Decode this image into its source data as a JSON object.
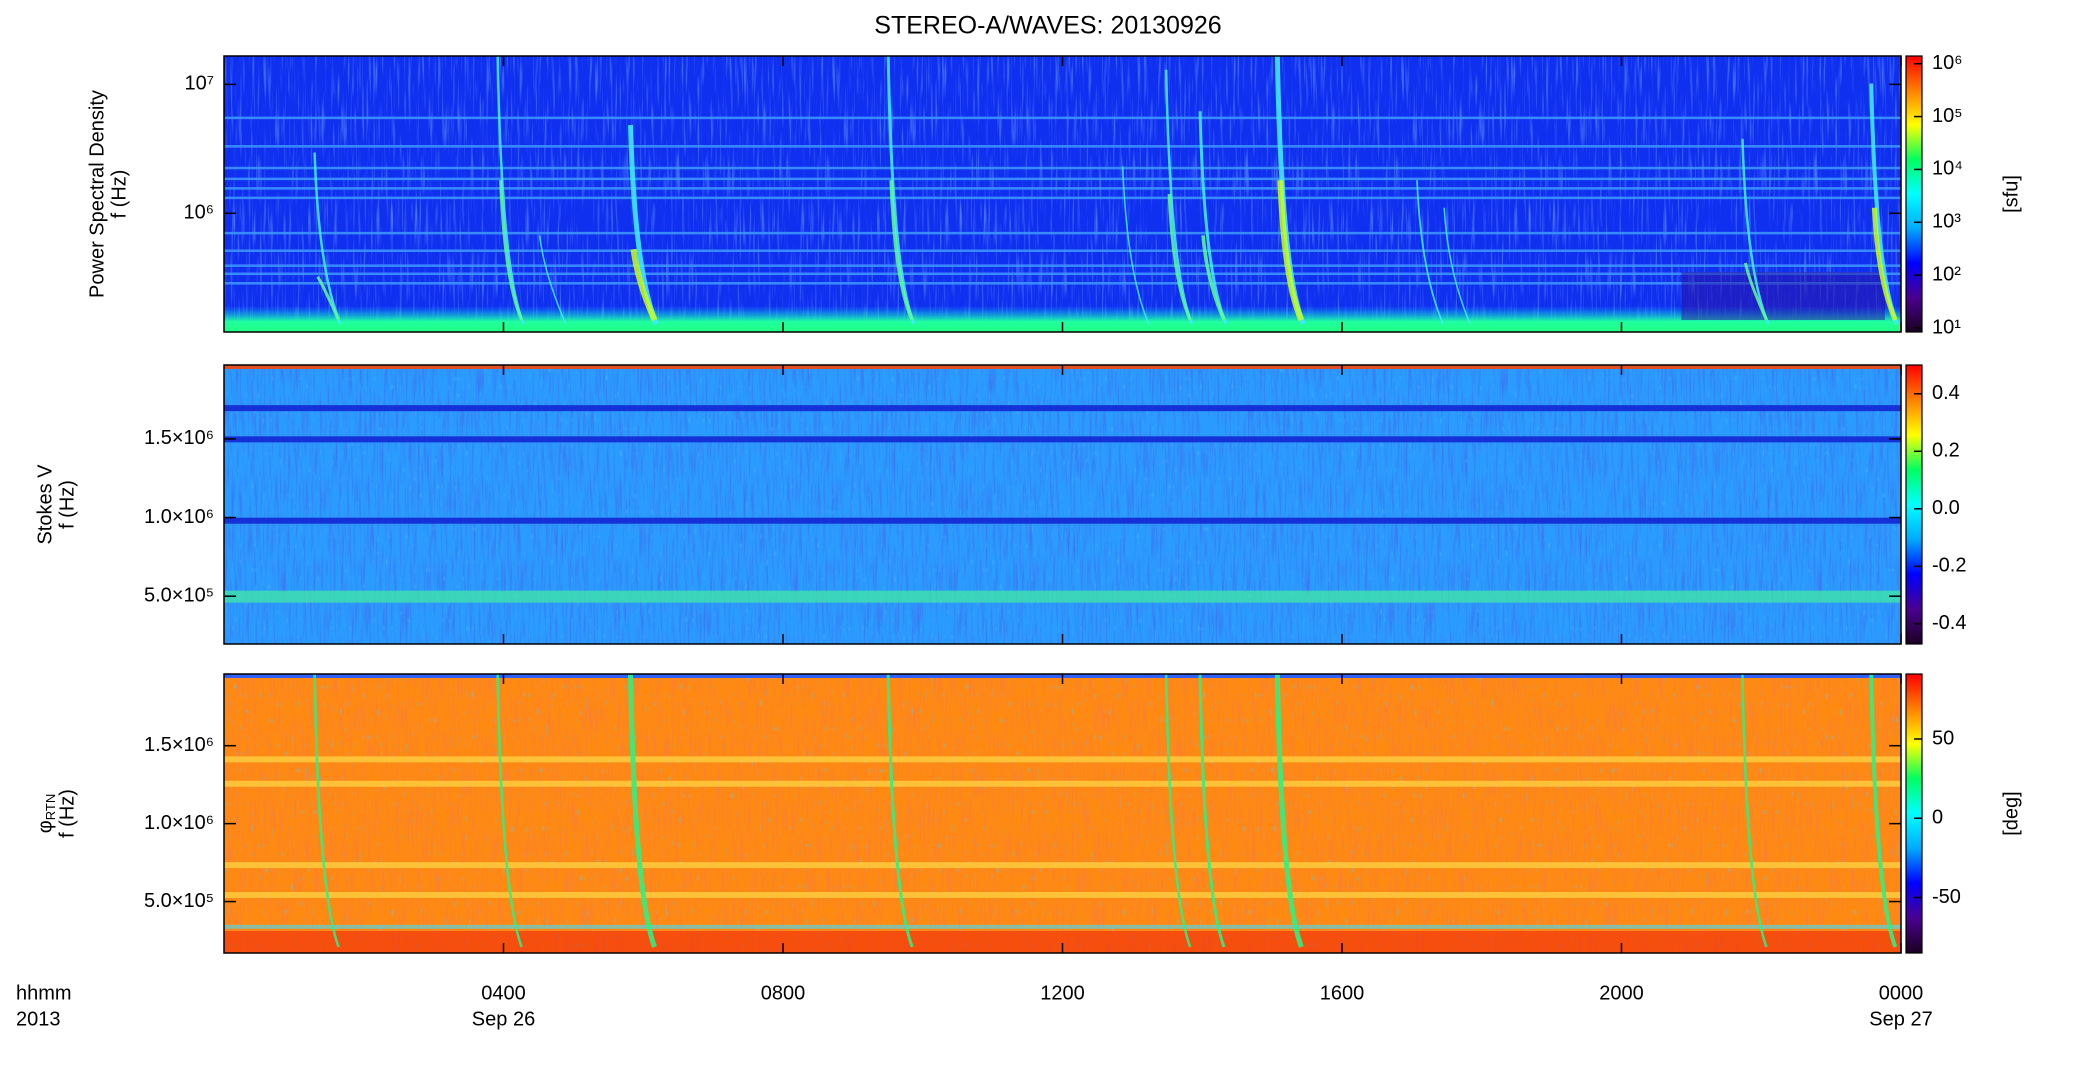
{
  "title": "STEREO-A/WAVES: 20130926",
  "x_axis": {
    "xlim": [
      0,
      24
    ],
    "xticks": [
      {
        "value": 4,
        "label": "0400"
      },
      {
        "value": 8,
        "label": "0800"
      },
      {
        "value": 12,
        "label": "1200"
      },
      {
        "value": 16,
        "label": "1600"
      },
      {
        "value": 20,
        "label": "2000"
      },
      {
        "value": 24,
        "label": "0000"
      }
    ],
    "date_labels": [
      {
        "value": 4,
        "label": "Sep 26"
      },
      {
        "value": 24,
        "label": "Sep 27"
      }
    ],
    "labels": [
      "hhmm",
      "2013"
    ]
  },
  "chart_data": [
    {
      "type": "spectrogram",
      "ylabel": [
        "Power Spectral Density",
        "f (Hz)"
      ],
      "log_scale": true,
      "ylim": [
        120000,
        16600000
      ],
      "yticks": [
        {
          "value": 1000000,
          "label": "10⁶"
        },
        {
          "value": 10000000,
          "label": "10⁷"
        }
      ],
      "colorbar": {
        "label": "[sfu]",
        "log_scale": true,
        "clim": [
          8.4,
          1400000
        ],
        "cticks": [
          {
            "value": 10,
            "label": "10¹"
          },
          {
            "value": 100,
            "label": "10²"
          },
          {
            "value": 1000,
            "label": "10³"
          },
          {
            "value": 10000,
            "label": "10⁴"
          },
          {
            "value": 100000,
            "label": "10⁵"
          },
          {
            "value": 1000000,
            "label": "10⁶"
          }
        ],
        "colormap": [
          "#1a0020",
          "#4a0090",
          "#0000ff",
          "#00aaff",
          "#00ffff",
          "#00ff60",
          "#ffff00",
          "#ff8000",
          "#ff0000"
        ]
      }
    },
    {
      "type": "spectrogram",
      "ylabel": [
        "Stokes V",
        "f (Hz)"
      ],
      "log_scale": false,
      "ylim": [
        196000,
        1970000
      ],
      "yticks": [
        {
          "value": 500000,
          "label": "5.0×10⁵"
        },
        {
          "value": 1000000,
          "label": "1.0×10⁶"
        },
        {
          "value": 1500000,
          "label": "1.5×10⁶"
        }
      ],
      "colorbar": {
        "log_scale": false,
        "clim": [
          -0.47,
          0.5
        ],
        "cticks": [
          -0.4,
          -0.2,
          {
            "value": 0,
            "label": "0.0"
          },
          0.2,
          0.4
        ],
        "colormap": [
          "#1a0020",
          "#4a0090",
          "#0000ff",
          "#00aaff",
          "#00ffff",
          "#00ff60",
          "#ffff00",
          "#ff8000",
          "#ff0000"
        ]
      }
    },
    {
      "type": "spectrogram",
      "ylabel": [
        "φ",
        "f (Hz)"
      ],
      "ylabel_subscript": "RTN",
      "log_scale": false,
      "ylim": [
        170000,
        1960000
      ],
      "yticks": [
        {
          "value": 500000,
          "label": "5.0×10⁵"
        },
        {
          "value": 1000000,
          "label": "1.0×10⁶"
        },
        {
          "value": 1500000,
          "label": "1.5×10⁶"
        }
      ],
      "colorbar": {
        "label": "[deg]",
        "log_scale": false,
        "clim": [
          -85,
          91
        ],
        "cticks": [
          -50,
          0,
          50
        ],
        "colormap": [
          "#1a0020",
          "#4a0090",
          "#0000ff",
          "#00aaff",
          "#00ffff",
          "#00ff60",
          "#ffff00",
          "#ff8000",
          "#ff0000"
        ]
      }
    }
  ]
}
